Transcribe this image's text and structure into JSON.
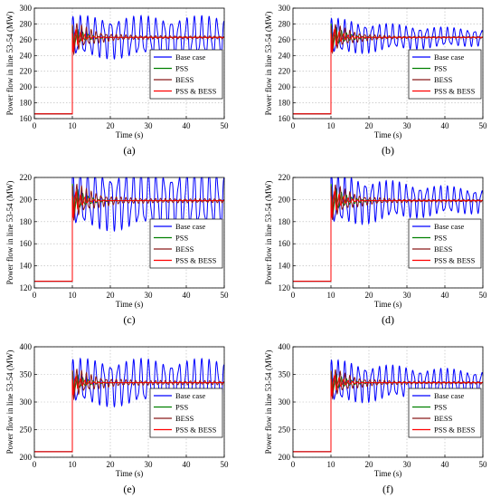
{
  "figure": {
    "panels": [
      {
        "id": "a",
        "caption": "(a)"
      },
      {
        "id": "b",
        "caption": "(b)"
      },
      {
        "id": "c",
        "caption": "(c)"
      },
      {
        "id": "d",
        "caption": "(d)"
      },
      {
        "id": "e",
        "caption": "(e)"
      },
      {
        "id": "f",
        "caption": "(f)"
      }
    ],
    "series_colors": {
      "Base case": "#0000ff",
      "PSS": "#008000",
      "BESS": "#8b1a1a",
      "PSS & BESS": "#ff0000"
    }
  },
  "chart_data": [
    {
      "type": "line",
      "panel": "(a)",
      "xlabel": "Time (s)",
      "ylabel": "Power flow in line 53-54 (MW)",
      "xlim": [
        0,
        50
      ],
      "ylim": [
        160,
        300
      ],
      "xticks": [
        0,
        10,
        20,
        30,
        40,
        50
      ],
      "yticks": [
        160,
        180,
        200,
        220,
        240,
        260,
        280,
        300
      ],
      "grid": true,
      "legend": "center-right",
      "initial": 166,
      "step_time": 10,
      "steady": 263,
      "series": [
        {
          "name": "Base case",
          "amplitude": 16,
          "decay": 0.0,
          "period": 2.0,
          "floor": 6
        },
        {
          "name": "PSS",
          "amplitude": 14,
          "decay": 0.35,
          "period": 1.4,
          "floor": 0
        },
        {
          "name": "BESS",
          "amplitude": 18,
          "decay": 0.2,
          "period": 1.3,
          "floor": 1.5
        },
        {
          "name": "PSS & BESS",
          "amplitude": 17,
          "decay": 0.5,
          "period": 1.2,
          "floor": 0
        }
      ]
    },
    {
      "type": "line",
      "panel": "(b)",
      "xlabel": "Time (s)",
      "ylabel": "Power flow in line 53-54 (MW)",
      "xlim": [
        0,
        50
      ],
      "ylim": [
        160,
        300
      ],
      "xticks": [
        0,
        10,
        20,
        30,
        40,
        50
      ],
      "yticks": [
        160,
        180,
        200,
        220,
        240,
        260,
        280,
        300
      ],
      "grid": true,
      "legend": "center-right",
      "initial": 166,
      "step_time": 10,
      "steady": 263,
      "series": [
        {
          "name": "Base case",
          "amplitude": 16,
          "decay": 0.03,
          "period": 1.8,
          "floor": 4
        },
        {
          "name": "PSS",
          "amplitude": 16,
          "decay": 0.3,
          "period": 1.4,
          "floor": 0
        },
        {
          "name": "BESS",
          "amplitude": 17,
          "decay": 0.2,
          "period": 1.3,
          "floor": 1
        },
        {
          "name": "PSS & BESS",
          "amplitude": 17,
          "decay": 0.45,
          "period": 1.2,
          "floor": 0
        }
      ]
    },
    {
      "type": "line",
      "panel": "(c)",
      "xlabel": "Time (s)",
      "ylabel": "Power flow in line 53-54 (MW)",
      "xlim": [
        0,
        50
      ],
      "ylim": [
        120,
        220
      ],
      "xticks": [
        0,
        10,
        20,
        30,
        40,
        50
      ],
      "yticks": [
        120,
        140,
        160,
        180,
        200,
        220
      ],
      "grid": true,
      "legend": "center-right",
      "initial": 126,
      "step_time": 10,
      "steady": 199,
      "series": [
        {
          "name": "Base case",
          "amplitude": 17,
          "decay": 0.0,
          "period": 2.0,
          "floor": 5
        },
        {
          "name": "PSS",
          "amplitude": 14,
          "decay": 0.35,
          "period": 1.4,
          "floor": 0
        },
        {
          "name": "BESS",
          "amplitude": 15,
          "decay": 0.2,
          "period": 1.3,
          "floor": 1.5
        },
        {
          "name": "PSS & BESS",
          "amplitude": 14,
          "decay": 0.5,
          "period": 1.2,
          "floor": 0
        }
      ]
    },
    {
      "type": "line",
      "panel": "(d)",
      "xlabel": "Time (s)",
      "ylabel": "Power flow in line 53-54 (MW)",
      "xlim": [
        0,
        50
      ],
      "ylim": [
        120,
        220
      ],
      "xticks": [
        0,
        10,
        20,
        30,
        40,
        50
      ],
      "yticks": [
        120,
        140,
        160,
        180,
        200,
        220
      ],
      "grid": true,
      "legend": "center-right",
      "initial": 126,
      "step_time": 10,
      "steady": 199,
      "series": [
        {
          "name": "Base case",
          "amplitude": 17,
          "decay": 0.03,
          "period": 1.8,
          "floor": 4
        },
        {
          "name": "PSS",
          "amplitude": 14,
          "decay": 0.3,
          "period": 1.4,
          "floor": 0
        },
        {
          "name": "BESS",
          "amplitude": 15,
          "decay": 0.2,
          "period": 1.3,
          "floor": 1
        },
        {
          "name": "PSS & BESS",
          "amplitude": 14,
          "decay": 0.45,
          "period": 1.2,
          "floor": 0
        }
      ]
    },
    {
      "type": "line",
      "panel": "(e)",
      "xlabel": "Time (s)",
      "ylabel": "Power flow in line 53-54 (MW)",
      "xlim": [
        0,
        50
      ],
      "ylim": [
        200,
        400
      ],
      "xticks": [
        0,
        10,
        20,
        30,
        40,
        50
      ],
      "yticks": [
        200,
        250,
        300,
        350,
        400
      ],
      "grid": true,
      "legend": "center-right",
      "initial": 210,
      "step_time": 10,
      "steady": 335,
      "series": [
        {
          "name": "Base case",
          "amplitude": 20,
          "decay": 0.0,
          "period": 2.0,
          "floor": 15
        },
        {
          "name": "PSS",
          "amplitude": 20,
          "decay": 0.35,
          "period": 1.4,
          "floor": 0
        },
        {
          "name": "BESS",
          "amplitude": 24,
          "decay": 0.2,
          "period": 1.3,
          "floor": 3
        },
        {
          "name": "PSS & BESS",
          "amplitude": 20,
          "decay": 0.5,
          "period": 1.2,
          "floor": 0
        }
      ]
    },
    {
      "type": "line",
      "panel": "(f)",
      "xlabel": "Time (s)",
      "ylabel": "Power flow in line 53-54 (MW)",
      "xlim": [
        0,
        50
      ],
      "ylim": [
        200,
        400
      ],
      "xticks": [
        0,
        10,
        20,
        30,
        40,
        50
      ],
      "yticks": [
        200,
        250,
        300,
        350,
        400
      ],
      "grid": true,
      "legend": "center-right",
      "initial": 210,
      "step_time": 10,
      "steady": 335,
      "series": [
        {
          "name": "Base case",
          "amplitude": 22,
          "decay": 0.03,
          "period": 1.8,
          "floor": 12
        },
        {
          "name": "PSS",
          "amplitude": 20,
          "decay": 0.3,
          "period": 1.4,
          "floor": 0
        },
        {
          "name": "BESS",
          "amplitude": 24,
          "decay": 0.2,
          "period": 1.3,
          "floor": 2
        },
        {
          "name": "PSS & BESS",
          "amplitude": 22,
          "decay": 0.45,
          "period": 1.2,
          "floor": 0
        }
      ]
    }
  ]
}
